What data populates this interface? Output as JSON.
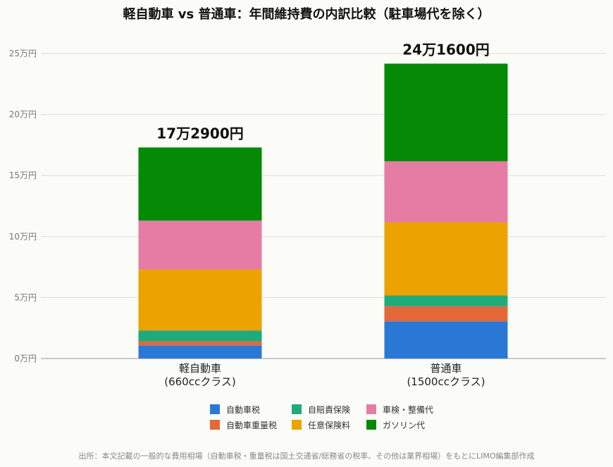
{
  "chart_data": {
    "type": "bar",
    "stacked": true,
    "title": "軽自動車 vs 普通車：年間維持費の内訳比較（駐車場代を除く）",
    "categories": [
      {
        "line1": "軽自動車",
        "line2": "(660ccクラス)"
      },
      {
        "line1": "普通車",
        "line2": "(1500ccクラス)"
      }
    ],
    "series": [
      {
        "name": "自動車税",
        "color": "#2a78d6",
        "values": [
          1.08,
          3.05
        ]
      },
      {
        "name": "自動車重量税",
        "color": "#e4683a",
        "values": [
          0.33,
          1.23
        ]
      },
      {
        "name": "自賠責保険",
        "color": "#1faa7a",
        "values": [
          0.89,
          0.89
        ]
      },
      {
        "name": "任意保険料",
        "color": "#eca200",
        "values": [
          5.0,
          6.0
        ]
      },
      {
        "name": "車検・整備代",
        "color": "#e57ca4",
        "values": [
          4.0,
          5.0
        ]
      },
      {
        "name": "ガソリン代",
        "color": "#058a05",
        "values": [
          6.0,
          8.0
        ]
      }
    ],
    "totals": [
      "17万2900円",
      "24万1600円"
    ],
    "total_values": [
      17.29,
      24.16
    ],
    "y_ticks": [
      "0万円",
      "5万円",
      "10万円",
      "15万円",
      "20万円",
      "25万円"
    ],
    "y_tick_values": [
      0,
      5,
      10,
      15,
      20,
      25
    ],
    "ylim": [
      0,
      26.5
    ],
    "grid": true,
    "legend_position": "bottom-center",
    "xlabel": "",
    "ylabel": ""
  },
  "source_note": "出所：本文記載の一般的な費用相場（自動車税・重量税は国土交通省/総務省の税率、その他は業界相場）をもとにLIMO編集部作成"
}
